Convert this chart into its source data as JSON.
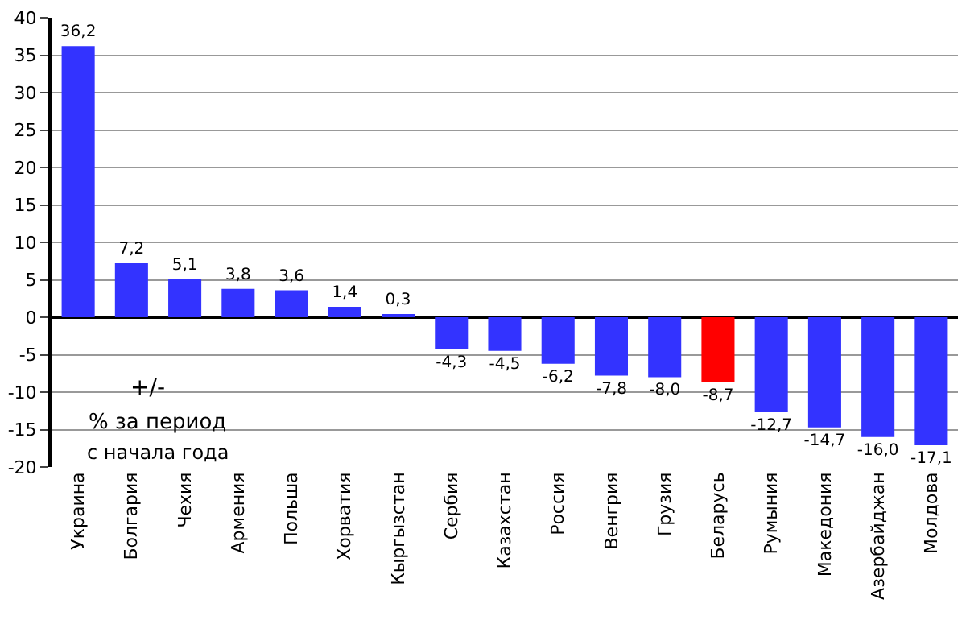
{
  "chart_data": {
    "type": "bar",
    "categories": [
      "Украина",
      "Болгария",
      "Чехия",
      "Армения",
      "Польша",
      "Хорватия",
      "Кыргызстан",
      "Сербия",
      "Казахстан",
      "Россия",
      "Венгрия",
      "Грузия",
      "Беларусь",
      "Румыния",
      "Македония",
      "Азербайджан",
      "Молдова"
    ],
    "values": [
      36.2,
      7.2,
      5.1,
      3.8,
      3.6,
      1.4,
      0.3,
      -4.3,
      -4.5,
      -6.2,
      -7.8,
      -8.0,
      -8.7,
      -12.7,
      -14.7,
      -16.0,
      -17.1
    ],
    "value_labels": [
      "36,2",
      "7,2",
      "5,1",
      "3,8",
      "3,6",
      "1,4",
      "0,3",
      "-4,3",
      "-4,5",
      "-6,2",
      "-7,8",
      "-8,0",
      "-8,7",
      "-12,7",
      "-14,7",
      "-16,0",
      "-17,1"
    ],
    "colors": [
      "#3333ff",
      "#3333ff",
      "#3333ff",
      "#3333ff",
      "#3333ff",
      "#3333ff",
      "#3333ff",
      "#3333ff",
      "#3333ff",
      "#3333ff",
      "#3333ff",
      "#3333ff",
      "#ff0000",
      "#3333ff",
      "#3333ff",
      "#3333ff",
      "#3333ff"
    ],
    "ylim": [
      -20,
      40
    ],
    "yticks": [
      -20,
      -15,
      -10,
      -5,
      0,
      5,
      10,
      15,
      20,
      25,
      30,
      35,
      40
    ],
    "grid": "y",
    "annotations": [
      "+/-",
      "% за период",
      "с начала года"
    ]
  }
}
